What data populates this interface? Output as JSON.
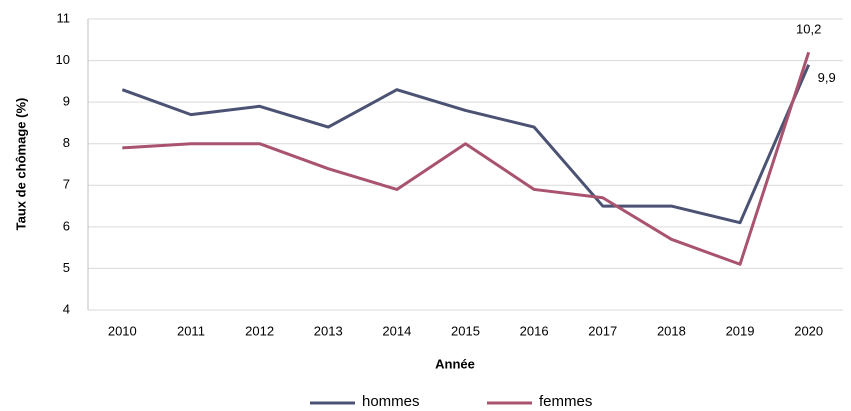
{
  "chart_data": {
    "type": "line",
    "x_label": "Année",
    "y_label": "Taux de chômage (%)",
    "categories": [
      "2010",
      "2011",
      "2012",
      "2013",
      "2014",
      "2015",
      "2016",
      "2017",
      "2018",
      "2019",
      "2020"
    ],
    "series": [
      {
        "name": "hommes",
        "color": "#4b5273",
        "values": [
          9.3,
          8.7,
          8.9,
          8.4,
          9.3,
          8.8,
          8.4,
          6.5,
          6.5,
          6.1,
          9.9
        ],
        "value_labels": [
          null,
          null,
          null,
          null,
          null,
          null,
          null,
          null,
          null,
          null,
          "9,9"
        ]
      },
      {
        "name": "femmes",
        "color": "#a9536e",
        "values": [
          7.9,
          8.0,
          8.0,
          7.4,
          6.9,
          8.0,
          6.9,
          6.7,
          5.7,
          5.1,
          10.2
        ],
        "value_labels": [
          null,
          null,
          null,
          null,
          null,
          null,
          null,
          null,
          null,
          null,
          "10,2"
        ]
      }
    ],
    "ylim": [
      4,
      11
    ],
    "yticks": [
      4,
      5,
      6,
      7,
      8,
      9,
      10,
      11
    ],
    "grid": true,
    "legend": "bottom"
  }
}
